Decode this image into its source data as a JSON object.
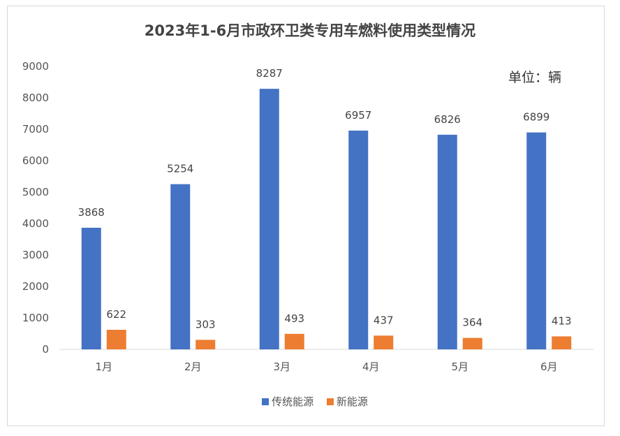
{
  "chart_data": {
    "type": "bar",
    "title": "2023年1-6月市政环卫类专用车燃料使用类型情况",
    "unit_note": "单位：辆",
    "categories": [
      "1月",
      "2月",
      "3月",
      "4月",
      "5月",
      "6月"
    ],
    "series": [
      {
        "name": "传统能源",
        "values": [
          3868,
          5254,
          8287,
          6957,
          6826,
          6899
        ],
        "color": "#4472C4"
      },
      {
        "name": "新能源",
        "values": [
          622,
          303,
          493,
          437,
          364,
          413
        ],
        "color": "#ED7D31"
      }
    ],
    "ylim": [
      0,
      9000
    ],
    "yticks": [
      0,
      1000,
      2000,
      3000,
      4000,
      5000,
      6000,
      7000,
      8000,
      9000
    ],
    "grid": false,
    "legend": "bottom"
  }
}
